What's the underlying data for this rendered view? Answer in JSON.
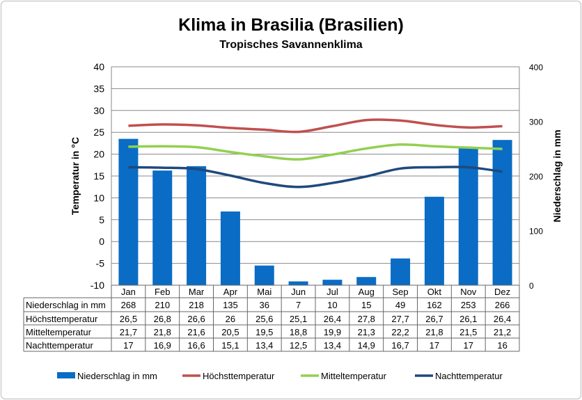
{
  "chart_data": {
    "type": "bar+line",
    "title": "Klima in Brasilia (Brasilien)",
    "subtitle": "Tropisches Savannenklima",
    "ylabel_left": "Temperatur in °C",
    "ylabel_right": "Niederschlag in mm",
    "ylim_left": [
      -10,
      40
    ],
    "yticks_left": [
      "40",
      "35",
      "30",
      "25",
      "20",
      "15",
      "10",
      "5",
      "0",
      "-5",
      "-10"
    ],
    "ylim_right": [
      0,
      400
    ],
    "yticks_right": [
      "400",
      "300",
      "200",
      "100",
      "0"
    ],
    "categories": [
      "Jan",
      "Feb",
      "Mar",
      "Apr",
      "Mai",
      "Jun",
      "Jul",
      "Aug",
      "Sep",
      "Okt",
      "Nov",
      "Dez"
    ],
    "grid": true,
    "legend_position": "bottom",
    "series": [
      {
        "name": "Niederschlag in mm",
        "type": "bar",
        "axis": "right",
        "color": "#0a6cc4",
        "values": [
          268,
          210,
          218,
          135,
          36,
          7,
          10,
          15,
          49,
          162,
          253,
          266
        ],
        "labels": [
          "268",
          "210",
          "218",
          "135",
          "36",
          "7",
          "10",
          "15",
          "49",
          "162",
          "253",
          "266"
        ]
      },
      {
        "name": "Höchsttemperatur",
        "type": "line",
        "axis": "left",
        "color": "#c0504d",
        "values": [
          26.5,
          26.8,
          26.6,
          26,
          25.6,
          25.1,
          26.4,
          27.8,
          27.7,
          26.7,
          26.1,
          26.4
        ],
        "labels": [
          "26,5",
          "26,8",
          "26,6",
          "26",
          "25,6",
          "25,1",
          "26,4",
          "27,8",
          "27,7",
          "26,7",
          "26,1",
          "26,4"
        ]
      },
      {
        "name": "Mitteltemperatur",
        "type": "line",
        "axis": "left",
        "color": "#92d050",
        "values": [
          21.7,
          21.8,
          21.6,
          20.5,
          19.5,
          18.8,
          19.9,
          21.3,
          22.2,
          21.8,
          21.5,
          21.2
        ],
        "labels": [
          "21,7",
          "21,8",
          "21,6",
          "20,5",
          "19,5",
          "18,8",
          "19,9",
          "21,3",
          "22,2",
          "21,8",
          "21,5",
          "21,2"
        ]
      },
      {
        "name": "Nachttemperatur",
        "type": "line",
        "axis": "left",
        "color": "#1f497d",
        "values": [
          17,
          16.9,
          16.6,
          15.1,
          13.4,
          12.5,
          13.4,
          14.9,
          16.7,
          17,
          17,
          16
        ],
        "labels": [
          "17",
          "16,9",
          "16,6",
          "15,1",
          "13,4",
          "12,5",
          "13,4",
          "14,9",
          "16,7",
          "17",
          "17",
          "16"
        ]
      }
    ]
  }
}
